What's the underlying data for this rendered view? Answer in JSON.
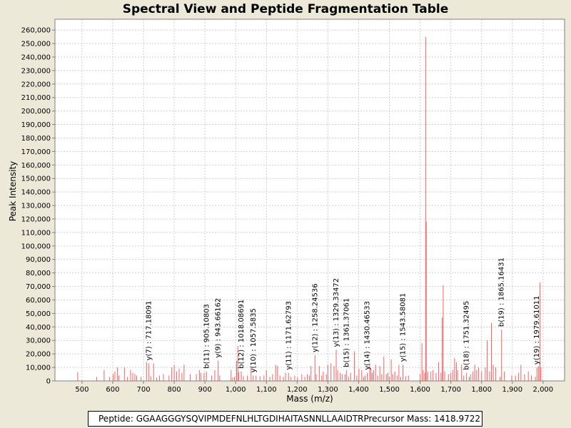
{
  "window": {
    "title": "Spectral View and Peptide Fragmentation Table"
  },
  "footer": {
    "peptide": "Peptide: GGAAGGGYSQVIPMDEFNLHLTGDIHAITASNNLLAAIDTR",
    "precursor": "Precursor Mass: 1418.9722"
  },
  "colors": {
    "peak": "#ff6060",
    "background": "#ece9d8",
    "plot": "#ffffff",
    "grid": "#d0d0d0"
  },
  "chart_data": {
    "type": "bar",
    "title": "Spectral View and Peptide Fragmentation Table",
    "xlabel": "Mass (m/z)",
    "ylabel": "Peak Intensity",
    "xlim": [
      412,
      2070
    ],
    "ylim": [
      0,
      268000
    ],
    "grid": true,
    "x_ticks": [
      500,
      600,
      700,
      800,
      900,
      1000,
      1100,
      1200,
      1300,
      1400,
      1500,
      1600,
      1700,
      1800,
      1900,
      2000
    ],
    "x_tick_labels": [
      "500",
      "600",
      "700",
      "800",
      "900",
      "1,000",
      "1,100",
      "1,200",
      "1,300",
      "1,400",
      "1,500",
      "1,600",
      "1,700",
      "1,800",
      "1,900",
      "2,000"
    ],
    "y_ticks": [
      0,
      10000,
      20000,
      30000,
      40000,
      50000,
      60000,
      70000,
      80000,
      90000,
      100000,
      110000,
      120000,
      130000,
      140000,
      150000,
      160000,
      170000,
      180000,
      190000,
      200000,
      210000,
      220000,
      230000,
      240000,
      250000,
      260000
    ],
    "y_tick_labels": [
      "0",
      "10,000",
      "20,000",
      "30,000",
      "40,000",
      "50,000",
      "60,000",
      "70,000",
      "80,000",
      "90,000",
      "100,000",
      "110,000",
      "120,000",
      "130,000",
      "140,000",
      "150,000",
      "160,000",
      "170,000",
      "180,000",
      "190,000",
      "200,000",
      "210,000",
      "220,000",
      "230,000",
      "240,000",
      "250,000",
      "260,000"
    ],
    "peaks": [
      [
        486,
        6500
      ],
      [
        548,
        3000
      ],
      [
        572,
        8000
      ],
      [
        590,
        3000
      ],
      [
        601,
        5000
      ],
      [
        607,
        7000
      ],
      [
        615,
        10000
      ],
      [
        620,
        4000
      ],
      [
        638,
        10000
      ],
      [
        648,
        3000
      ],
      [
        658,
        8000
      ],
      [
        665,
        6000
      ],
      [
        672,
        5000
      ],
      [
        678,
        4000
      ],
      [
        692,
        3000
      ],
      [
        710,
        14000
      ],
      [
        717,
        13000
      ],
      [
        724,
        3500
      ],
      [
        733,
        13000
      ],
      [
        743,
        2500
      ],
      [
        752,
        4000
      ],
      [
        765,
        5000
      ],
      [
        783,
        4000
      ],
      [
        792,
        10000
      ],
      [
        800,
        12000
      ],
      [
        808,
        7000
      ],
      [
        816,
        9000
      ],
      [
        825,
        6000
      ],
      [
        832,
        12000
      ],
      [
        852,
        5000
      ],
      [
        872,
        5000
      ],
      [
        882,
        8000
      ],
      [
        887,
        6000
      ],
      [
        897,
        6000
      ],
      [
        905,
        7000
      ],
      [
        922,
        4000
      ],
      [
        932,
        8000
      ],
      [
        943,
        15000
      ],
      [
        948,
        4000
      ],
      [
        985,
        8000
      ],
      [
        990,
        2500
      ],
      [
        996,
        3000
      ],
      [
        1003,
        15000
      ],
      [
        1007,
        26000
      ],
      [
        1010,
        6500
      ],
      [
        1018,
        7000
      ],
      [
        1025,
        3500
      ],
      [
        1038,
        4000
      ],
      [
        1050,
        10000
      ],
      [
        1057,
        4000
      ],
      [
        1066,
        4000
      ],
      [
        1079,
        3500
      ],
      [
        1092,
        4000
      ],
      [
        1100,
        8000
      ],
      [
        1111,
        3000
      ],
      [
        1120,
        5000
      ],
      [
        1130,
        12000
      ],
      [
        1136,
        11000
      ],
      [
        1144,
        4000
      ],
      [
        1155,
        3000
      ],
      [
        1162,
        6000
      ],
      [
        1172,
        6000
      ],
      [
        1180,
        3000
      ],
      [
        1192,
        4000
      ],
      [
        1201,
        2500
      ],
      [
        1215,
        5000
      ],
      [
        1225,
        3000
      ],
      [
        1233,
        5000
      ],
      [
        1240,
        4000
      ],
      [
        1245,
        11000
      ],
      [
        1258,
        19000
      ],
      [
        1262,
        5000
      ],
      [
        1272,
        11000
      ],
      [
        1280,
        4000
      ],
      [
        1285,
        7000
      ],
      [
        1295,
        5000
      ],
      [
        1300,
        12000
      ],
      [
        1310,
        13000
      ],
      [
        1320,
        11000
      ],
      [
        1327,
        23000
      ],
      [
        1332,
        8000
      ],
      [
        1340,
        6000
      ],
      [
        1347,
        5000
      ],
      [
        1356,
        5000
      ],
      [
        1361,
        8000
      ],
      [
        1367,
        3000
      ],
      [
        1374,
        6000
      ],
      [
        1386,
        22000
      ],
      [
        1394,
        4000
      ],
      [
        1401,
        9000
      ],
      [
        1410,
        8000
      ],
      [
        1416,
        3000
      ],
      [
        1421,
        4000
      ],
      [
        1428,
        6000
      ],
      [
        1436,
        12000
      ],
      [
        1440,
        9000
      ],
      [
        1444,
        6000
      ],
      [
        1449,
        8000
      ],
      [
        1455,
        12000
      ],
      [
        1462,
        4000
      ],
      [
        1469,
        11000
      ],
      [
        1475,
        5000
      ],
      [
        1482,
        18000
      ],
      [
        1490,
        5000
      ],
      [
        1495,
        6000
      ],
      [
        1500,
        3000
      ],
      [
        1506,
        16000
      ],
      [
        1511,
        5000
      ],
      [
        1518,
        7000
      ],
      [
        1525,
        4000
      ],
      [
        1531,
        12000
      ],
      [
        1537,
        3000
      ],
      [
        1544,
        12000
      ],
      [
        1553,
        3500
      ],
      [
        1562,
        4000
      ],
      [
        1600,
        5000
      ],
      [
        1606,
        28000
      ],
      [
        1610,
        8000
      ],
      [
        1615,
        6000
      ],
      [
        1618,
        255000
      ],
      [
        1620,
        118000
      ],
      [
        1625,
        7000
      ],
      [
        1635,
        7000
      ],
      [
        1642,
        8000
      ],
      [
        1652,
        6000
      ],
      [
        1660,
        14000
      ],
      [
        1668,
        6000
      ],
      [
        1672,
        47000
      ],
      [
        1675,
        71000
      ],
      [
        1680,
        7000
      ],
      [
        1692,
        5000
      ],
      [
        1700,
        6000
      ],
      [
        1706,
        8000
      ],
      [
        1712,
        17000
      ],
      [
        1718,
        14000
      ],
      [
        1722,
        8000
      ],
      [
        1735,
        12000
      ],
      [
        1742,
        4000
      ],
      [
        1751,
        6000
      ],
      [
        1760,
        3000
      ],
      [
        1765,
        5000
      ],
      [
        1772,
        7000
      ],
      [
        1778,
        12000
      ],
      [
        1784,
        8000
      ],
      [
        1790,
        10000
      ],
      [
        1800,
        7000
      ],
      [
        1812,
        10000
      ],
      [
        1818,
        30000
      ],
      [
        1826,
        7000
      ],
      [
        1832,
        43000
      ],
      [
        1838,
        12000
      ],
      [
        1846,
        10000
      ],
      [
        1860,
        3000
      ],
      [
        1865,
        38000
      ],
      [
        1874,
        7000
      ],
      [
        1898,
        4000
      ],
      [
        1910,
        4000
      ],
      [
        1920,
        6000
      ],
      [
        1928,
        12000
      ],
      [
        1940,
        5000
      ],
      [
        1952,
        7000
      ],
      [
        1962,
        4000
      ],
      [
        1975,
        3000
      ],
      [
        1980,
        10000
      ],
      [
        1985,
        11000
      ],
      [
        1990,
        73000
      ],
      [
        1993,
        10000
      ]
    ],
    "annotations": [
      {
        "label": "y(7) : 717.18091",
        "x": 717,
        "y": 13000
      },
      {
        "label": "b(11) : 905.10803",
        "x": 905,
        "y": 7000
      },
      {
        "label": "y(9) : 943.66162",
        "x": 943,
        "y": 15000
      },
      {
        "label": "b(12) : 1018.08691",
        "x": 1018,
        "y": 7000
      },
      {
        "label": "y(10) : 1057.5835",
        "x": 1057,
        "y": 4000
      },
      {
        "label": "y(11) : 1171.62793",
        "x": 1172,
        "y": 6000
      },
      {
        "label": "y(12) : 1258.24536",
        "x": 1258,
        "y": 19000
      },
      {
        "label": "y(13) : 1329.33472",
        "x": 1327,
        "y": 23000
      },
      {
        "label": "b(15) : 1361.37061",
        "x": 1361,
        "y": 8000
      },
      {
        "label": "y(14) : 1430.46533",
        "x": 1428,
        "y": 6000
      },
      {
        "label": "y(15) : 1543.58081",
        "x": 1544,
        "y": 12000
      },
      {
        "label": "b(18) : 1751.32495",
        "x": 1751,
        "y": 6000
      },
      {
        "label": "b(19) : 1865.16431",
        "x": 1865,
        "y": 38000
      },
      {
        "label": "y(19) : 1979.61011",
        "x": 1980,
        "y": 10000
      }
    ]
  }
}
